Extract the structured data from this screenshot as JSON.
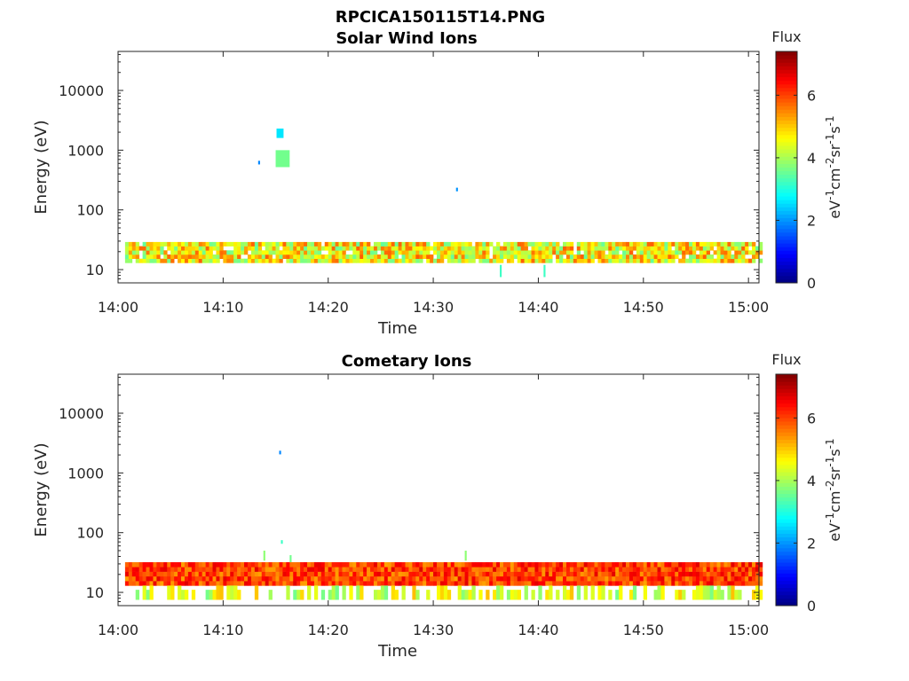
{
  "figure_title": "RPCICA150115T14.PNG",
  "chart_data": [
    {
      "type": "heatmap",
      "title": "Solar Wind Ions",
      "xlabel": "Time",
      "ylabel": "Energy (eV)",
      "x_ticks": [
        "14:00",
        "14:10",
        "14:20",
        "14:30",
        "14:40",
        "14:50",
        "15:00"
      ],
      "xlim": [
        "14:00",
        "15:01"
      ],
      "y_scale": "log",
      "y_ticks": [
        10,
        100,
        1000,
        10000
      ],
      "ylim": [
        6,
        45000
      ],
      "colorbar": {
        "label": "Flux",
        "units": "eV-1cm-2sr-1s-1",
        "range": [
          0,
          7.4
        ],
        "ticks": [
          0,
          2,
          4,
          6
        ],
        "colormap": "jet"
      },
      "background": "#ffffff",
      "dominant_feature": {
        "time_range": [
          "14:00:40",
          "15:01"
        ],
        "energy_range_eV": [
          13,
          29
        ],
        "flux_range": [
          3.5,
          5.8
        ]
      },
      "sporadic_features": [
        {
          "time_range": [
            "14:15:05",
            "14:15:45"
          ],
          "energy_range_eV": [
            1600,
            2300
          ],
          "flux": 2.6
        },
        {
          "time_range": [
            "14:15:00",
            "14:16:20"
          ],
          "energy_range_eV": [
            520,
            1000
          ],
          "flux": 3.6
        },
        {
          "time": "14:13:20",
          "energy_eV": 620,
          "flux": 1.9
        },
        {
          "time": "14:32:10",
          "energy_eV": 220,
          "flux": 2.0
        },
        {
          "time": "14:36:20",
          "energy_range_eV": [
            7.5,
            12
          ],
          "flux": 3.2
        },
        {
          "time": "14:40:30",
          "energy_range_eV": [
            7.5,
            12
          ],
          "flux": 3.2
        }
      ]
    },
    {
      "type": "heatmap",
      "title": "Cometary Ions",
      "xlabel": "Time",
      "ylabel": "Energy (eV)",
      "x_ticks": [
        "14:00",
        "14:10",
        "14:20",
        "14:30",
        "14:40",
        "14:50",
        "15:00"
      ],
      "xlim": [
        "14:00",
        "15:01"
      ],
      "y_scale": "log",
      "y_ticks": [
        10,
        100,
        1000,
        10000
      ],
      "ylim": [
        6,
        45000
      ],
      "colorbar": {
        "label": "Flux",
        "units": "eV-1cm-2sr-1s-1",
        "range": [
          0,
          7.4
        ],
        "ticks": [
          0,
          2,
          4,
          6
        ],
        "colormap": "jet"
      },
      "background": "#ffffff",
      "dominant_feature": {
        "time_range": [
          "14:00:40",
          "15:01"
        ],
        "energy_range_eV": [
          13,
          32
        ],
        "flux_range": [
          5.3,
          6.7
        ]
      },
      "low_energy_feature": {
        "energy_range_eV": [
          7.5,
          13
        ],
        "flux_range": [
          3.6,
          5.2
        ],
        "coverage": "intermittent"
      },
      "sporadic_features": [
        {
          "time": "14:15:20",
          "energy_eV": 2200,
          "flux": 1.9
        },
        {
          "time": "14:15:30",
          "energy_eV": 70,
          "flux": 3.2
        },
        {
          "time": "14:13:50",
          "energy_range_eV": [
            34,
            50
          ],
          "flux": 3.8
        },
        {
          "time": "14:16:20",
          "energy_range_eV": [
            32,
            42
          ],
          "flux": 3.6
        },
        {
          "time": "14:33:00",
          "energy_range_eV": [
            34,
            50
          ],
          "flux": 3.8
        }
      ]
    }
  ]
}
